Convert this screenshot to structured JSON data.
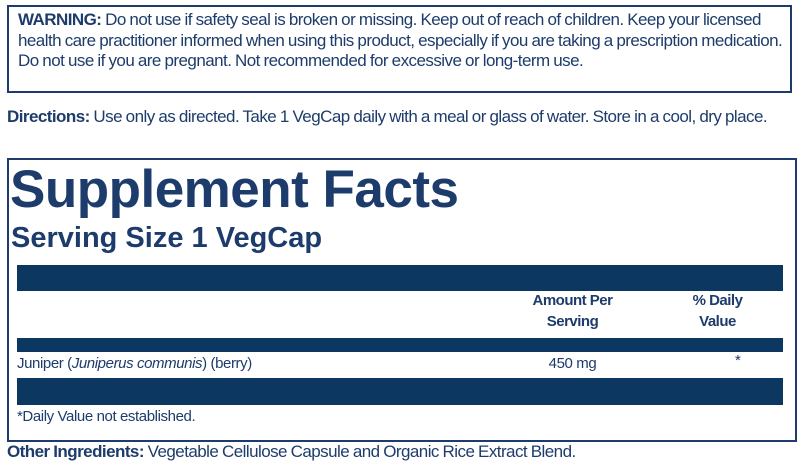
{
  "warning": {
    "label": "WARNING:",
    "text": " Do not use if safety seal is broken or missing. Keep out of reach of children. Keep your licensed health care practitioner informed when using this product, especially if you are taking a prescription medication. Do not use if you are pregnant. Not recommended for excessive or long-term use."
  },
  "directions": {
    "label": "Directions:",
    "text": " Use only as directed. Take 1 VegCap daily with a meal or glass of water. Store in a cool, dry place."
  },
  "facts": {
    "title": "Supplement Facts",
    "serving_size": "Serving Size 1 VegCap",
    "headers": {
      "amount_line1": "Amount Per",
      "amount_line2": "Serving",
      "dv_line1": "% Daily",
      "dv_line2": "Value"
    },
    "rows": [
      {
        "name_prefix": "Juniper (",
        "name_italic": "Juniperus communis",
        "name_suffix": ") (berry)",
        "amount": "450 mg",
        "dv": "*"
      }
    ],
    "footnote": "*Daily Value not established."
  },
  "other_ingredients": {
    "label": "Other Ingredients:",
    "text": " Vegetable Cellulose Capsule and Organic Rice Extract Blend."
  },
  "colors": {
    "navy": "#0c3761",
    "text": "#1d3c6b"
  }
}
